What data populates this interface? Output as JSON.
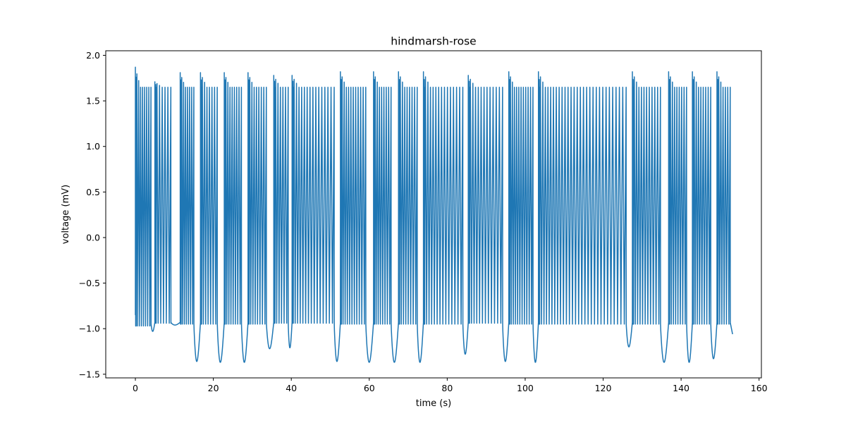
{
  "chart_data": {
    "type": "line",
    "title": "hindmarsh-rose",
    "xlabel": "time (s)",
    "ylabel": "voltage (mV)",
    "xlim": [
      -7.6,
      160.6
    ],
    "ylim": [
      -1.54,
      2.05
    ],
    "xticks": [
      0,
      20,
      40,
      60,
      80,
      100,
      120,
      140,
      160
    ],
    "yticks": [
      -1.5,
      -1.0,
      -0.5,
      0.0,
      0.5,
      1.0,
      1.5,
      2.0
    ],
    "xtick_labels": [
      "0",
      "20",
      "40",
      "60",
      "80",
      "100",
      "120",
      "140",
      "160"
    ],
    "ytick_labels": [
      "−1.5",
      "−1.0",
      "−0.5",
      "0.0",
      "0.5",
      "1.0",
      "1.5",
      "2.0"
    ],
    "grid": false,
    "line_color": "#1f77b4",
    "series": [
      {
        "bursts": [
          {
            "start": 0.0,
            "end": 4.0,
            "spikes": 9,
            "peak": 1.87,
            "min": -0.97,
            "dip": -1.03
          },
          {
            "start": 5.0,
            "end": 9.1,
            "spikes": 7,
            "peak": 1.71,
            "min": -0.94,
            "dip": -0.96
          },
          {
            "start": 11.5,
            "end": 15.0,
            "spikes": 8,
            "peak": 1.81,
            "min": -0.95,
            "dip": -1.36
          },
          {
            "start": 16.7,
            "end": 21.0,
            "spikes": 8,
            "peak": 1.81,
            "min": -0.95,
            "dip": -1.37
          },
          {
            "start": 22.8,
            "end": 27.2,
            "spikes": 9,
            "peak": 1.81,
            "min": -0.95,
            "dip": -1.37
          },
          {
            "start": 28.9,
            "end": 33.6,
            "spikes": 9,
            "peak": 1.81,
            "min": -0.95,
            "dip": -1.22
          },
          {
            "start": 35.5,
            "end": 39.2,
            "spikes": 7,
            "peak": 1.78,
            "min": -0.94,
            "dip": -1.21
          },
          {
            "start": 40.2,
            "end": 51.0,
            "spikes": 16,
            "peak": 1.78,
            "min": -0.94,
            "dip": -1.36
          },
          {
            "start": 52.6,
            "end": 59.1,
            "spikes": 12,
            "peak": 1.82,
            "min": -0.95,
            "dip": -1.37
          },
          {
            "start": 61.1,
            "end": 65.6,
            "spikes": 9,
            "peak": 1.82,
            "min": -0.95,
            "dip": -1.37
          },
          {
            "start": 67.5,
            "end": 72.3,
            "spikes": 9,
            "peak": 1.82,
            "min": -0.95,
            "dip": -1.37
          },
          {
            "start": 73.9,
            "end": 84.0,
            "spikes": 15,
            "peak": 1.82,
            "min": -0.95,
            "dip": -1.28
          },
          {
            "start": 85.4,
            "end": 94.2,
            "spikes": 13,
            "peak": 1.78,
            "min": -0.94,
            "dip": -1.36
          },
          {
            "start": 95.8,
            "end": 102.0,
            "spikes": 12,
            "peak": 1.82,
            "min": -0.95,
            "dip": -1.37
          },
          {
            "start": 103.4,
            "end": 125.9,
            "spikes": 30,
            "peak": 1.82,
            "min": -0.95,
            "dip": -1.2
          },
          {
            "start": 127.5,
            "end": 134.7,
            "spikes": 12,
            "peak": 1.82,
            "min": -0.95,
            "dip": -1.37
          },
          {
            "start": 136.8,
            "end": 141.4,
            "spikes": 9,
            "peak": 1.82,
            "min": -0.95,
            "dip": -1.37
          },
          {
            "start": 142.9,
            "end": 147.6,
            "spikes": 9,
            "peak": 1.82,
            "min": -0.95,
            "dip": -1.33
          },
          {
            "start": 149.2,
            "end": 152.6,
            "spikes": 7,
            "peak": 1.82,
            "min": -0.95,
            "dip": -1.06
          }
        ],
        "start_value": -0.85,
        "end": {
          "x": 153.2,
          "y": -1.06
        }
      }
    ]
  }
}
